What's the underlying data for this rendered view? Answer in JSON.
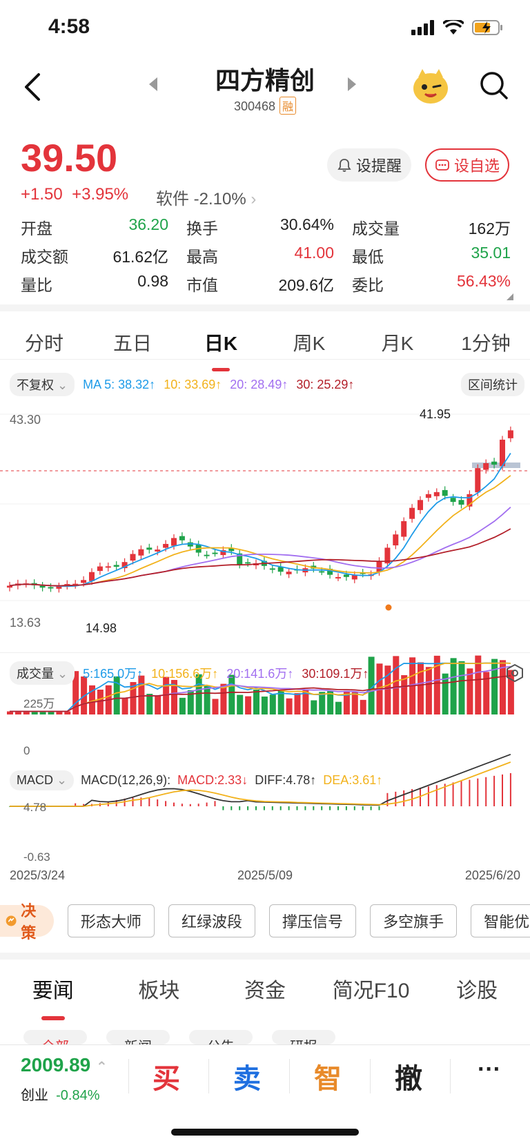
{
  "status": {
    "time": "4:58"
  },
  "header": {
    "title": "四方精创",
    "code": "300468",
    "badge": "融"
  },
  "quote": {
    "price": "39.50",
    "change": "+1.50",
    "change_pct": "+3.95%",
    "sector_name": "软件",
    "sector_pct": "-2.10%",
    "alert_label": "设提醒",
    "fav_label": "设自选"
  },
  "stats": [
    [
      {
        "label": "开盘",
        "value": "36.20",
        "color": "#1fa34a"
      },
      {
        "label": "换手",
        "value": "30.64%",
        "color": "#222"
      },
      {
        "label": "成交量",
        "value": "162万",
        "color": "#222"
      }
    ],
    [
      {
        "label": "成交额",
        "value": "61.62亿",
        "color": "#222"
      },
      {
        "label": "最高",
        "value": "41.00",
        "color": "#e3343b"
      },
      {
        "label": "最低",
        "value": "35.01",
        "color": "#1fa34a"
      }
    ],
    [
      {
        "label": "量比",
        "value": "0.98",
        "color": "#222"
      },
      {
        "label": "市值",
        "value": "209.6亿",
        "color": "#222"
      },
      {
        "label": "委比",
        "value": "56.43%",
        "color": "#e3343b"
      }
    ]
  ],
  "tabs": [
    "分时",
    "五日",
    "日K",
    "周K",
    "月K",
    "1分钟"
  ],
  "ma": {
    "adjust": "不复权",
    "ma5": "MA 5: 38.32↑",
    "ma10": "10: 33.69↑",
    "ma20": "20: 28.49↑",
    "ma30": "30: 25.29↑",
    "range_stat": "区间统计"
  },
  "kline": {
    "y_top_label": "43.30",
    "y_bottom_label": "13.63",
    "high_label": "41.95",
    "low_label": "14.98"
  },
  "volume": {
    "label": "成交量",
    "v5": "5:165.0万↑",
    "v10": "10:156.6万↑",
    "v20": "20:141.6万↑",
    "v30": "30:109.1万↑",
    "y_top": "225万",
    "y_zero": "0"
  },
  "macd": {
    "label": "MACD",
    "params": "MACD(12,26,9):",
    "macd": "MACD:2.33↓",
    "diff": "DIFF:4.78↑",
    "dea": "DEA:3.61↑",
    "y_top": "4.78",
    "y_bottom": "-0.63"
  },
  "dates": [
    "2025/3/24",
    "2025/5/09",
    "2025/6/20"
  ],
  "tools": {
    "decision": "决策",
    "items": [
      "形态大师",
      "红绿波段",
      "撑压信号",
      "多空旗手",
      "智能优"
    ]
  },
  "news_tabs": [
    "要闻",
    "板块",
    "资金",
    "简况F10",
    "诊股"
  ],
  "sub_tabs": [
    "全部",
    "新闻",
    "公告",
    "研报"
  ],
  "index": {
    "value": "2009.89",
    "name": "创业",
    "pct": "-0.84%"
  },
  "actions": {
    "buy": "买",
    "sell": "卖",
    "smart": "智",
    "cancel": "撤",
    "more": "···"
  },
  "colors": {
    "up": "#e3343b",
    "down": "#1fa34a",
    "ma5": "#1e9be8",
    "ma10": "#f2b21c",
    "ma20": "#a26ff0",
    "ma30": "#b3202a"
  }
}
